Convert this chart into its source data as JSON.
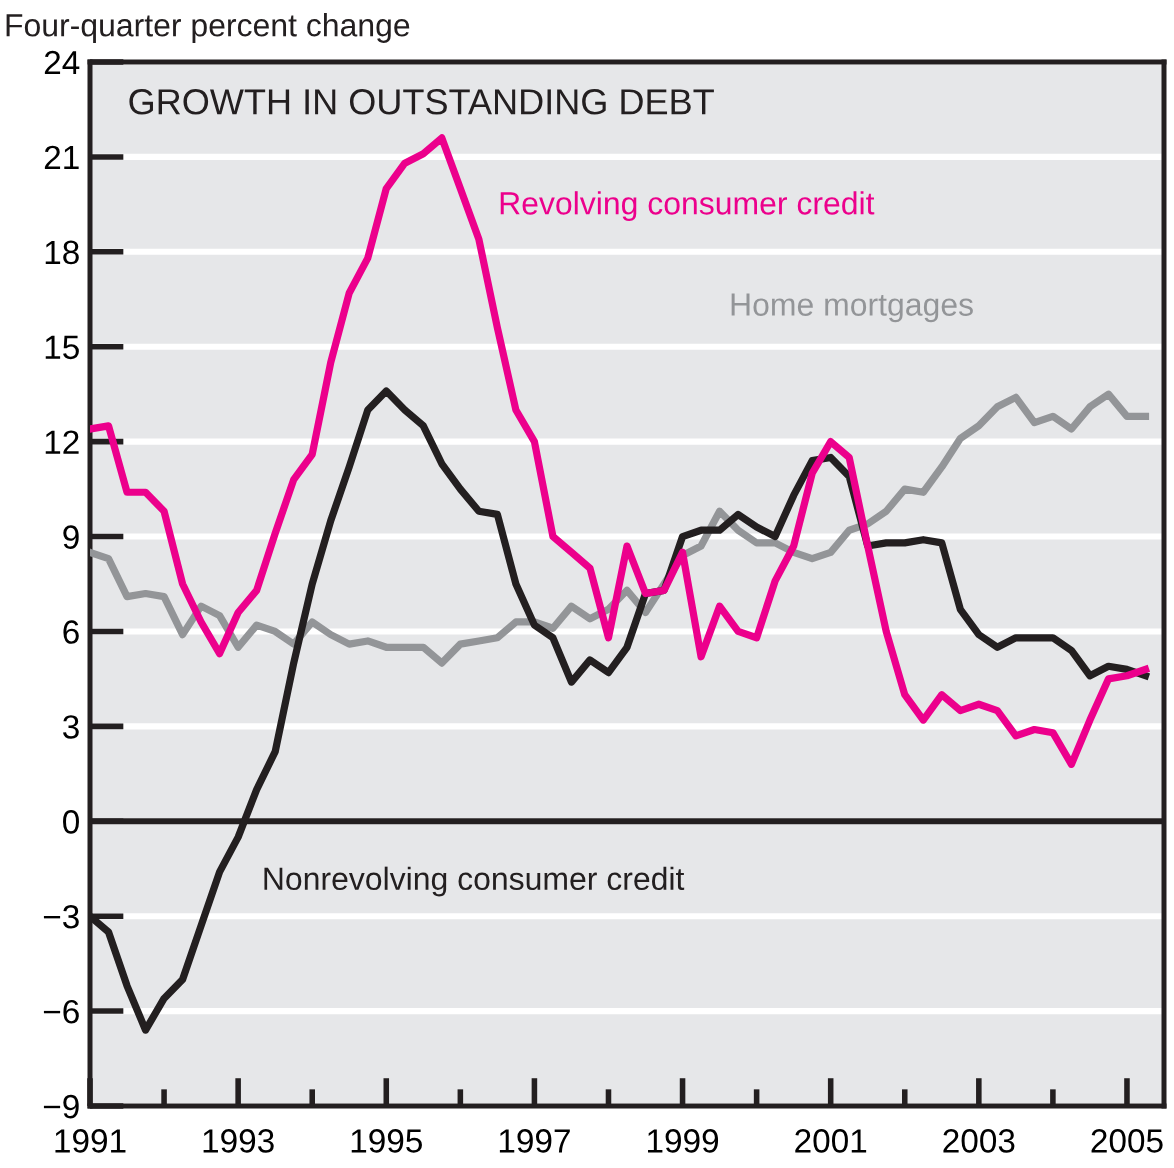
{
  "chart_data": {
    "type": "line",
    "title": "GROWTH IN OUTSTANDING DEBT",
    "ylabel": "Four-quarter percent change",
    "x": [
      1991.0,
      1991.25,
      1991.5,
      1991.75,
      1992.0,
      1992.25,
      1992.5,
      1992.75,
      1993.0,
      1993.25,
      1993.5,
      1993.75,
      1994.0,
      1994.25,
      1994.5,
      1994.75,
      1995.0,
      1995.25,
      1995.5,
      1995.75,
      1996.0,
      1996.25,
      1996.5,
      1996.75,
      1997.0,
      1997.25,
      1997.5,
      1997.75,
      1998.0,
      1998.25,
      1998.5,
      1998.75,
      1999.0,
      1999.25,
      1999.5,
      1999.75,
      2000.0,
      2000.25,
      2000.5,
      2000.75,
      2001.0,
      2001.25,
      2001.5,
      2001.75,
      2002.0,
      2002.25,
      2002.5,
      2002.75,
      2003.0,
      2003.25,
      2003.5,
      2003.75,
      2004.0,
      2004.25,
      2004.5,
      2004.75,
      2005.0,
      2005.25
    ],
    "series": [
      {
        "name": "Home mortgages",
        "color": "#939598",
        "values": [
          8.5,
          8.3,
          7.1,
          7.2,
          7.1,
          5.9,
          6.8,
          6.5,
          5.5,
          6.2,
          6.0,
          5.6,
          6.3,
          5.9,
          5.6,
          5.7,
          5.5,
          5.5,
          5.5,
          5.0,
          5.6,
          5.7,
          5.8,
          6.3,
          6.3,
          6.1,
          6.8,
          6.4,
          6.7,
          7.3,
          6.6,
          7.5,
          8.4,
          8.7,
          9.8,
          9.2,
          8.8,
          8.8,
          8.5,
          8.3,
          8.5,
          9.2,
          9.4,
          9.8,
          10.5,
          10.4,
          11.2,
          12.1,
          12.5,
          13.1,
          13.4,
          12.6,
          12.8,
          12.4,
          13.1,
          13.5,
          12.8,
          12.8
        ]
      },
      {
        "name": "Nonrevolving consumer credit",
        "color": "#231f20",
        "values": [
          -3.0,
          -3.5,
          -5.2,
          -6.6,
          -5.6,
          -5.0,
          -3.3,
          -1.6,
          -0.5,
          1.0,
          2.2,
          5.0,
          7.5,
          9.5,
          11.2,
          13.0,
          13.6,
          13.0,
          12.5,
          11.3,
          10.5,
          9.8,
          9.7,
          7.5,
          6.2,
          5.8,
          4.4,
          5.1,
          4.7,
          5.5,
          7.2,
          7.3,
          9.0,
          9.2,
          9.2,
          9.7,
          9.3,
          9.0,
          10.3,
          11.4,
          11.5,
          10.9,
          8.7,
          8.8,
          8.8,
          8.9,
          8.8,
          6.7,
          5.9,
          5.5,
          5.8,
          5.8,
          5.8,
          5.4,
          4.6,
          4.9,
          4.8,
          4.6
        ]
      },
      {
        "name": "Revolving consumer credit",
        "color": "#ec008c",
        "values": [
          12.4,
          12.5,
          10.4,
          10.4,
          9.8,
          7.5,
          6.3,
          5.3,
          6.6,
          7.3,
          9.1,
          10.8,
          11.6,
          14.5,
          16.7,
          17.8,
          20.0,
          20.8,
          21.1,
          21.6,
          20.0,
          18.4,
          15.6,
          13.0,
          12.0,
          9.0,
          8.5,
          8.0,
          5.8,
          8.7,
          7.2,
          7.3,
          8.5,
          5.2,
          6.8,
          6.0,
          5.8,
          7.6,
          8.7,
          11.0,
          12.0,
          11.5,
          8.7,
          6.0,
          4.0,
          3.2,
          4.0,
          3.5,
          3.7,
          3.5,
          2.7,
          2.9,
          2.8,
          1.8,
          3.2,
          4.5,
          4.6,
          4.8
        ]
      }
    ],
    "xlim": [
      1991,
      2005.5
    ],
    "xticks": [
      1991,
      {
        "value": 1992,
        "label": null
      },
      1993,
      {
        "value": 1994,
        "label": null
      },
      1995,
      {
        "value": 1996,
        "label": null
      },
      1997,
      {
        "value": 1998,
        "label": null
      },
      1999,
      {
        "value": 2000,
        "label": null
      },
      2001,
      {
        "value": 2002,
        "label": null
      },
      2003,
      {
        "value": 2004,
        "label": null
      },
      2005
    ],
    "ylim": [
      -9,
      24
    ],
    "yticks": [
      {
        "value": -9,
        "label": "−9"
      },
      {
        "value": -6,
        "label": "−6"
      },
      {
        "value": -3,
        "label": "−3"
      },
      0,
      3,
      6,
      9,
      12,
      15,
      18,
      21,
      24
    ],
    "ref_lines": [
      {
        "axis": "y",
        "value": 0,
        "color": "#231f20"
      }
    ],
    "grid": "y",
    "legend": false,
    "marker": "none",
    "line_style": "solid"
  }
}
